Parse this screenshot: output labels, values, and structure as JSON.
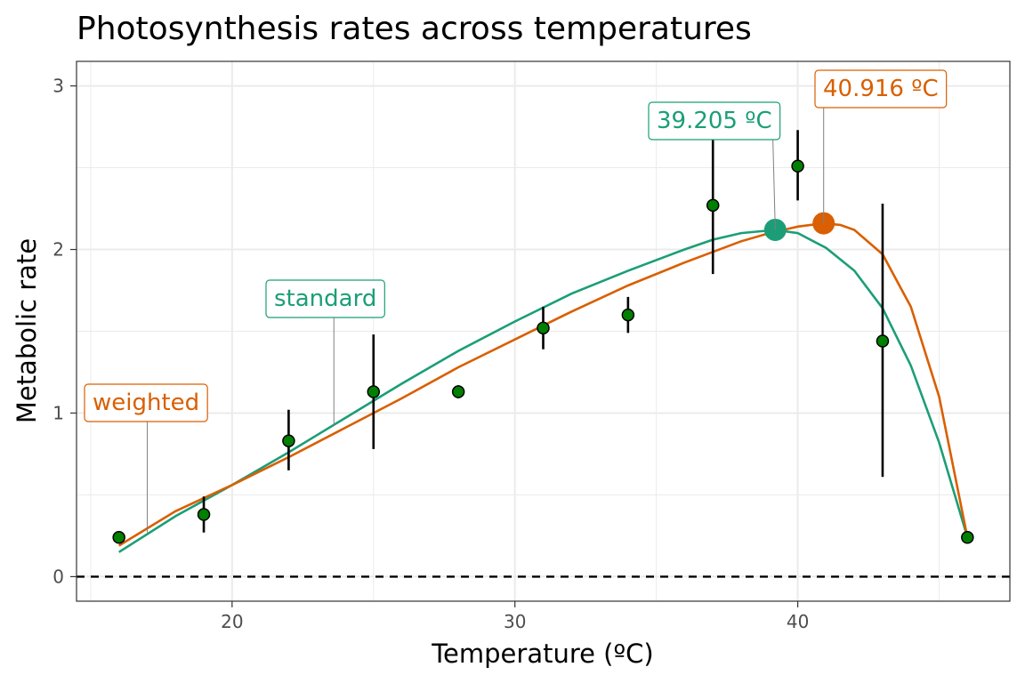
{
  "chart_data": {
    "type": "scatter",
    "title": "Photosynthesis rates across temperatures",
    "xlabel": "Temperature (ºC)",
    "ylabel": "Metabolic rate",
    "xlim": [
      14.5,
      47.5
    ],
    "ylim": [
      -0.15,
      3.15
    ],
    "x_ticks": [
      20,
      30,
      40
    ],
    "y_ticks": [
      0,
      1,
      2,
      3
    ],
    "x_tick_labels": [
      "20",
      "30",
      "40"
    ],
    "y_tick_labels": [
      "0",
      "1",
      "2",
      "3"
    ],
    "grid": true,
    "reference_line": {
      "y": 0,
      "style": "dashed",
      "color": "#000000"
    },
    "points": [
      {
        "x": 16,
        "y": 0.24,
        "lo": 0.21,
        "hi": 0.27
      },
      {
        "x": 19,
        "y": 0.38,
        "lo": 0.27,
        "hi": 0.49
      },
      {
        "x": 22,
        "y": 0.83,
        "lo": 0.65,
        "hi": 1.02
      },
      {
        "x": 25,
        "y": 1.13,
        "lo": 0.78,
        "hi": 1.48
      },
      {
        "x": 28,
        "y": 1.13,
        "lo": 1.09,
        "hi": 1.17
      },
      {
        "x": 31,
        "y": 1.52,
        "lo": 1.39,
        "hi": 1.65
      },
      {
        "x": 34,
        "y": 1.6,
        "lo": 1.49,
        "hi": 1.71
      },
      {
        "x": 37,
        "y": 2.27,
        "lo": 1.85,
        "hi": 2.69
      },
      {
        "x": 40,
        "y": 2.51,
        "lo": 2.3,
        "hi": 2.73
      },
      {
        "x": 43,
        "y": 1.44,
        "lo": 0.61,
        "hi": 2.28
      },
      {
        "x": 46,
        "y": 0.24,
        "lo": 0.21,
        "hi": 0.27
      }
    ],
    "point_color": "#008000",
    "series": [
      {
        "name": "standard",
        "color": "#1b9e77",
        "x": [
          16,
          18,
          20,
          22,
          24,
          26,
          28,
          30,
          32,
          34,
          36,
          37,
          38,
          39.205,
          40,
          41,
          42,
          43,
          44,
          45,
          46
        ],
        "values": [
          0.15,
          0.37,
          0.56,
          0.76,
          0.97,
          1.18,
          1.38,
          1.56,
          1.73,
          1.87,
          2.0,
          2.06,
          2.1,
          2.12,
          2.1,
          2.01,
          1.87,
          1.64,
          1.29,
          0.82,
          0.24
        ],
        "optimum": {
          "x": 39.205,
          "y": 2.12,
          "label": "39.205 ºC"
        }
      },
      {
        "name": "weighted",
        "color": "#d95f02",
        "x": [
          16,
          18,
          20,
          22,
          24,
          26,
          28,
          30,
          32,
          34,
          36,
          38,
          39,
          40,
          40.916,
          41.5,
          42,
          43,
          44,
          45,
          46
        ],
        "values": [
          0.19,
          0.4,
          0.56,
          0.73,
          0.91,
          1.09,
          1.28,
          1.45,
          1.62,
          1.78,
          1.92,
          2.05,
          2.1,
          2.14,
          2.16,
          2.15,
          2.12,
          1.97,
          1.65,
          1.1,
          0.24
        ],
        "optimum": {
          "x": 40.916,
          "y": 2.16,
          "label": "40.916 ºC"
        }
      }
    ],
    "annotations": [
      {
        "text": "weighted",
        "series": "weighted",
        "target_x": 17.0,
        "target_y": 0.27
      },
      {
        "text": "standard",
        "series": "standard",
        "target_x": 23.6,
        "target_y": 0.92
      },
      {
        "text": "39.205 ºC",
        "series": "standard",
        "target_x": 39.205,
        "target_y": 2.12
      },
      {
        "text": "40.916 ºC",
        "series": "weighted",
        "target_x": 40.916,
        "target_y": 2.16
      }
    ]
  }
}
